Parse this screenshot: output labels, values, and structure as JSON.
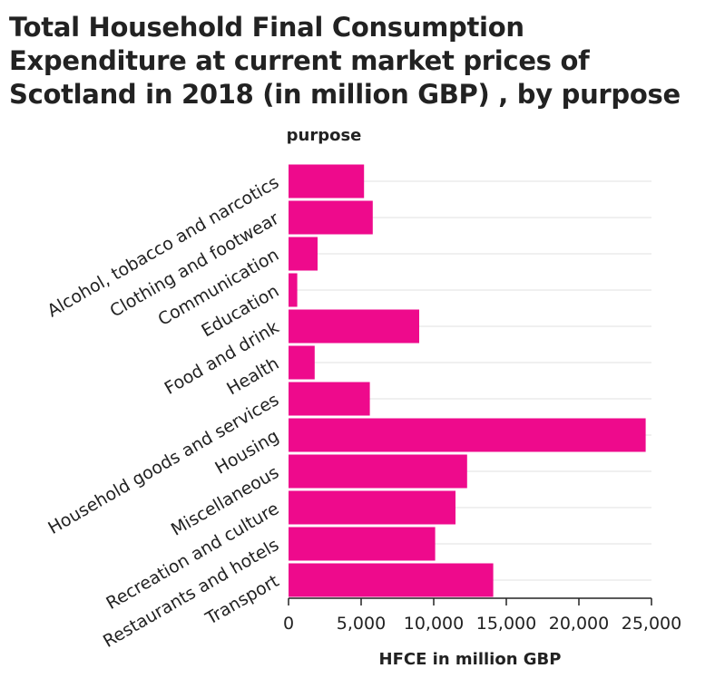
{
  "chart_data": {
    "type": "bar",
    "orientation": "horizontal",
    "title": "Total Household Final Consumption Expenditure at current market prices of Scotland in 2018 (in million GBP) , by purpose",
    "xlabel": "HFCE in million GBP",
    "ylabel": "purpose",
    "categories": [
      "Alcohol, tobacco and narcotics",
      "Clothing and footwear",
      "Communication",
      "Education",
      "Food and drink",
      "Health",
      "Household goods and services",
      "Housing",
      "Miscellaneous",
      "Recreation and culture",
      "Restaurants and hotels",
      "Transport"
    ],
    "values": [
      5200,
      5800,
      2000,
      600,
      9000,
      1800,
      5600,
      24600,
      12300,
      11500,
      10100,
      14100
    ],
    "xlim": [
      0,
      25000
    ],
    "xticks": [
      0,
      5000,
      10000,
      15000,
      20000,
      25000
    ],
    "xtick_labels": [
      "0",
      "5,000",
      "10,000",
      "15,000",
      "20,000",
      "25,000"
    ],
    "grid": "horizontal",
    "bar_color": "#ee0a8c",
    "grid_color": "#e2e2e2",
    "axis_color": "#222222"
  }
}
